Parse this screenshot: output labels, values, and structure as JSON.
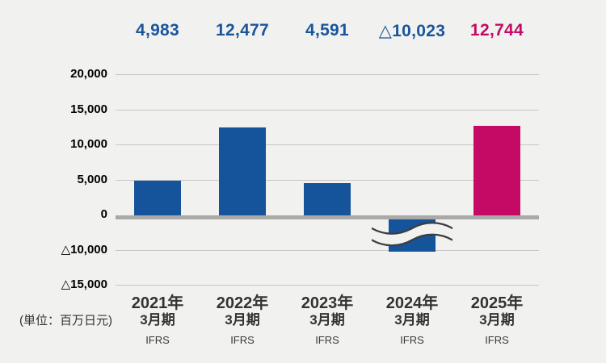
{
  "unit_label": "(単位：百万日元)",
  "colors": {
    "background": "#F1F1EF",
    "bar_blue": "#15549B",
    "bar_magenta": "#C50A65",
    "value_blue": "#1A559C",
    "value_magenta": "#C50A65",
    "grid_line": "#C6C6C4",
    "zero_line": "#A9A9A7",
    "wave_stroke": "#3C3C3C",
    "text_dark": "#333331"
  },
  "chart_data": {
    "type": "bar",
    "title": "",
    "unit": "百万日元",
    "legend": null,
    "grid": true,
    "y_axis": {
      "tick_labels": [
        "20,000",
        "15,000",
        "10,000",
        "5,000",
        "0",
        "△10,000",
        "△15,000"
      ],
      "tick_values": [
        20000,
        15000,
        10000,
        5000,
        0,
        -10000,
        -15000
      ],
      "note": "axis break between 0 and △10,000 (△5,000 tick omitted)"
    },
    "axis_break": {
      "between_ticks": [
        "0",
        "△10,000"
      ],
      "applies_to_category": "2024年3月期"
    },
    "categories": [
      "2021年3月期",
      "2022年3月期",
      "2023年3月期",
      "2024年3月期",
      "2025年3月期"
    ],
    "values": [
      4983,
      12477,
      4591,
      -10023,
      12744
    ],
    "columns": [
      {
        "year_line": "2021年",
        "period_line": "3月期",
        "standard": "IFRS",
        "value": 4983,
        "value_label": "4,983",
        "bar_color": "#15549B",
        "label_color": "#1A559C",
        "axis_break": false
      },
      {
        "year_line": "2022年",
        "period_line": "3月期",
        "standard": "IFRS",
        "value": 12477,
        "value_label": "12,477",
        "bar_color": "#15549B",
        "label_color": "#1A559C",
        "axis_break": false
      },
      {
        "year_line": "2023年",
        "period_line": "3月期",
        "standard": "IFRS",
        "value": 4591,
        "value_label": "4,591",
        "bar_color": "#15549B",
        "label_color": "#1A559C",
        "axis_break": false
      },
      {
        "year_line": "2024年",
        "period_line": "3月期",
        "standard": "IFRS",
        "value": -10023,
        "value_label": "△10,023",
        "bar_color": "#15549B",
        "label_color": "#1A559C",
        "axis_break": true
      },
      {
        "year_line": "2025年",
        "period_line": "3月期",
        "standard": "IFRS",
        "value": 12744,
        "value_label": "12,744",
        "bar_color": "#C50A65",
        "label_color": "#C50A65",
        "axis_break": false
      }
    ]
  }
}
